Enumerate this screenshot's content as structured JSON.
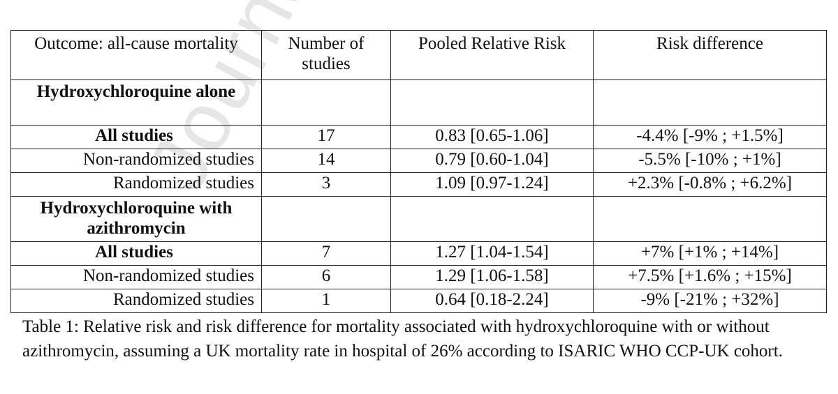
{
  "watermark": "Journal Pre-p",
  "table": {
    "headers": [
      "Outcome: all-cause mortality",
      "Number of studies",
      "Pooled Relative Risk",
      "Risk difference"
    ],
    "groups": [
      {
        "name": "Hydroxychloroquine alone",
        "rows": [
          {
            "label": "All studies",
            "n": "17",
            "rr": "0.83 [0.65-1.06]",
            "rd": "-4.4% [-9% ; +1.5%]"
          },
          {
            "label": "Non-randomized studies",
            "n": "14",
            "rr": "0.79 [0.60-1.04]",
            "rd": "-5.5% [-10% ; +1%]"
          },
          {
            "label": "Randomized studies",
            "n": "3",
            "rr": "1.09 [0.97-1.24]",
            "rd": "+2.3% [-0.8% ; +6.2%]"
          }
        ]
      },
      {
        "name": "Hydroxychloroquine with azithromycin",
        "rows": [
          {
            "label": "All studies",
            "n": "7",
            "rr": "1.27 [1.04-1.54]",
            "rd": "+7% [+1% ; +14%]"
          },
          {
            "label": "Non-randomized studies",
            "n": "6",
            "rr": "1.29 [1.06-1.58]",
            "rd": "+7.5% [+1.6% ; +15%]"
          },
          {
            "label": "Randomized studies",
            "n": "1",
            "rr": "0.64 [0.18-2.24]",
            "rd": "-9% [-21% ; +32%]"
          }
        ]
      }
    ]
  },
  "caption": "Table 1: Relative risk and risk difference for mortality associated with hydroxychloroquine with or without azithromycin, assuming a UK mortality rate in hospital of 26% according to ISARIC WHO CCP-UK cohort."
}
